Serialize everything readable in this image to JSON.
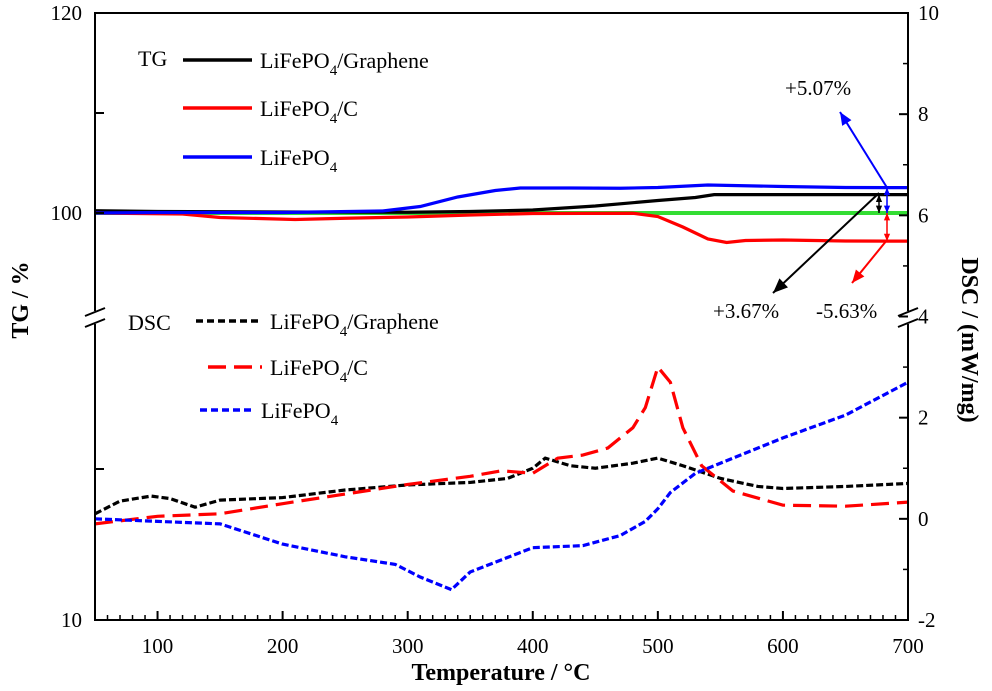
{
  "chart_data": {
    "type": "line",
    "title": "",
    "xlabel": "Temperature / °C",
    "xlim": [
      50,
      700
    ],
    "x_ticks": [
      "100",
      "200",
      "300",
      "400",
      "500",
      "600",
      "700"
    ],
    "left_axis": {
      "label": "TG / %",
      "tick_labels": [
        "120",
        "100",
        "10"
      ],
      "scale": "broken"
    },
    "right_axis": {
      "label": "DSC / (mW/mg)",
      "ylim": [
        -2,
        10
      ],
      "tick_labels": [
        "10",
        "8",
        "6",
        "4",
        "2",
        "0",
        "-2"
      ]
    },
    "grid": false,
    "legend": {
      "tg_header": "TG",
      "dsc_header": "DSC",
      "tg_items": [
        {
          "pre": "LiFePO",
          "sub": "4",
          "post": "/Graphene",
          "color": "#000000"
        },
        {
          "pre": "LiFePO",
          "sub": "4",
          "post": "/C",
          "color": "#ff0000"
        },
        {
          "pre": "LiFePO",
          "sub": "4",
          "post": "",
          "color": "#0000ff"
        }
      ],
      "dsc_items": [
        {
          "pre": "LiFePO",
          "sub": "4",
          "post": "/Graphene",
          "color": "#000000"
        },
        {
          "pre": "LiFePO",
          "sub": "4",
          "post": "/C",
          "color": "#ff0000"
        },
        {
          "pre": "LiFePO",
          "sub": "4",
          "post": "",
          "color": "#0000ff"
        }
      ]
    },
    "annotations": [
      "+5.07%",
      "+3.67%",
      "-5.63%"
    ],
    "tg_series": [
      {
        "name": "LiFePO4/Graphene",
        "color": "#000000",
        "points": [
          [
            50,
            100.45
          ],
          [
            100,
            100.3
          ],
          [
            200,
            100.2
          ],
          [
            300,
            100.15
          ],
          [
            350,
            100.3
          ],
          [
            400,
            100.6
          ],
          [
            450,
            101.4
          ],
          [
            500,
            102.5
          ],
          [
            530,
            103.1
          ],
          [
            545,
            103.67
          ],
          [
            600,
            103.67
          ],
          [
            700,
            103.67
          ]
        ]
      },
      {
        "name": "LiFePO4/C",
        "color": "#ff0000",
        "points": [
          [
            50,
            100
          ],
          [
            120,
            99.8
          ],
          [
            150,
            99.1
          ],
          [
            210,
            98.7
          ],
          [
            250,
            98.95
          ],
          [
            300,
            99.2
          ],
          [
            350,
            99.6
          ],
          [
            400,
            99.9
          ],
          [
            480,
            99.95
          ],
          [
            500,
            99.3
          ],
          [
            520,
            97.2
          ],
          [
            540,
            94.8
          ],
          [
            555,
            94.1
          ],
          [
            570,
            94.5
          ],
          [
            600,
            94.6
          ],
          [
            650,
            94.4
          ],
          [
            700,
            94.37
          ]
        ]
      },
      {
        "name": "LiFePO4",
        "color": "#0000ff",
        "points": [
          [
            50,
            100
          ],
          [
            100,
            100.1
          ],
          [
            200,
            100.1
          ],
          [
            280,
            100.4
          ],
          [
            310,
            101.3
          ],
          [
            340,
            103.2
          ],
          [
            370,
            104.5
          ],
          [
            390,
            105
          ],
          [
            430,
            105
          ],
          [
            470,
            104.95
          ],
          [
            500,
            105.1
          ],
          [
            540,
            105.6
          ],
          [
            600,
            105.3
          ],
          [
            650,
            105.1
          ],
          [
            700,
            105.07
          ]
        ]
      }
    ],
    "reference_line": {
      "value": 100,
      "color": "#33dd33"
    },
    "dsc_series": [
      {
        "name": "LiFePO4/Graphene",
        "color": "#000000",
        "points": [
          [
            50,
            0.1
          ],
          [
            70,
            0.35
          ],
          [
            95,
            0.45
          ],
          [
            110,
            0.4
          ],
          [
            130,
            0.23
          ],
          [
            150,
            0.37
          ],
          [
            200,
            0.42
          ],
          [
            250,
            0.57
          ],
          [
            300,
            0.67
          ],
          [
            350,
            0.72
          ],
          [
            380,
            0.8
          ],
          [
            400,
            1.0
          ],
          [
            410,
            1.2
          ],
          [
            430,
            1.05
          ],
          [
            450,
            1.0
          ],
          [
            480,
            1.1
          ],
          [
            500,
            1.2
          ],
          [
            520,
            1.05
          ],
          [
            550,
            0.8
          ],
          [
            580,
            0.64
          ],
          [
            600,
            0.6
          ],
          [
            650,
            0.64
          ],
          [
            700,
            0.7
          ]
        ]
      },
      {
        "name": "LiFePO4/C",
        "color": "#ff0000",
        "points": [
          [
            50,
            -0.1
          ],
          [
            100,
            0.05
          ],
          [
            150,
            0.1
          ],
          [
            200,
            0.3
          ],
          [
            250,
            0.49
          ],
          [
            300,
            0.68
          ],
          [
            350,
            0.84
          ],
          [
            375,
            0.95
          ],
          [
            400,
            0.9
          ],
          [
            420,
            1.2
          ],
          [
            440,
            1.26
          ],
          [
            460,
            1.4
          ],
          [
            480,
            1.8
          ],
          [
            490,
            2.2
          ],
          [
            500,
            3.0
          ],
          [
            510,
            2.7
          ],
          [
            520,
            1.8
          ],
          [
            535,
            1.05
          ],
          [
            560,
            0.55
          ],
          [
            600,
            0.27
          ],
          [
            650,
            0.25
          ],
          [
            700,
            0.33
          ]
        ]
      },
      {
        "name": "LiFePO4",
        "color": "#0000ff",
        "points": [
          [
            50,
            0
          ],
          [
            100,
            -0.05
          ],
          [
            150,
            -0.1
          ],
          [
            200,
            -0.5
          ],
          [
            250,
            -0.75
          ],
          [
            290,
            -0.9
          ],
          [
            310,
            -1.15
          ],
          [
            335,
            -1.4
          ],
          [
            350,
            -1.05
          ],
          [
            400,
            -0.57
          ],
          [
            440,
            -0.53
          ],
          [
            470,
            -0.33
          ],
          [
            490,
            -0.05
          ],
          [
            500,
            0.2
          ],
          [
            510,
            0.52
          ],
          [
            530,
            0.9
          ],
          [
            560,
            1.2
          ],
          [
            600,
            1.6
          ],
          [
            650,
            2.05
          ],
          [
            700,
            2.7
          ]
        ]
      }
    ]
  }
}
